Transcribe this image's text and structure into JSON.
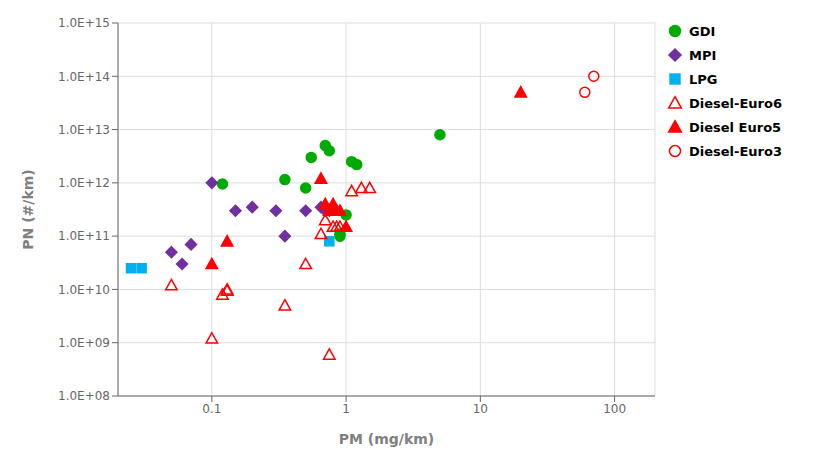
{
  "chart_data": {
    "type": "scatter",
    "xlabel": "PM (mg/km)",
    "ylabel": "PN (#/km)",
    "xlim": [
      0.02,
      200
    ],
    "ylim": [
      100000000,
      1000000000000000
    ],
    "xticks": [
      0.1,
      1,
      10,
      100
    ],
    "yticks": [
      {
        "value": 100000000,
        "label": "1.0E+08"
      },
      {
        "value": 1000000000,
        "label": "1.0E+09"
      },
      {
        "value": 10000000000,
        "label": "1.0E+10"
      },
      {
        "value": 100000000000,
        "label": "1.0E+11"
      },
      {
        "value": 1000000000000,
        "label": "1.0E+12"
      },
      {
        "value": 10000000000000,
        "label": "1.0E+13"
      },
      {
        "value": 100000000000000,
        "label": "1.0E+14"
      },
      {
        "value": 1000000000000000,
        "label": "1.0E+15"
      }
    ],
    "log": true,
    "grid": true,
    "legend": "right",
    "series": [
      {
        "name": "GDI",
        "color": "#00AA00",
        "marker": "circle",
        "x": [
          0.12,
          0.35,
          0.5,
          0.55,
          0.7,
          0.75,
          0.9,
          1.0,
          1.1,
          1.2,
          5.0,
          0.9
        ],
        "y": [
          950000000000,
          1150000000000,
          800000000000,
          3000000000000,
          5000000000000,
          4000000000000,
          110000000000,
          250000000000,
          2500000000000,
          2200000000000,
          8000000000000,
          100000000000
        ]
      },
      {
        "name": "MPI",
        "color": "#7030A0",
        "marker": "diamond",
        "x": [
          0.05,
          0.06,
          0.07,
          0.1,
          0.15,
          0.2,
          0.3,
          0.35,
          0.5,
          0.65,
          0.7,
          0.75
        ],
        "y": [
          50000000000,
          30000000000,
          70000000000,
          1000000000000,
          300000000000,
          350000000000,
          300000000000,
          100000000000,
          300000000000,
          350000000000,
          300000000000,
          300000000000
        ]
      },
      {
        "name": "LPG",
        "color": "#00B0F0",
        "marker": "square",
        "x": [
          0.025,
          0.03,
          0.75
        ],
        "y": [
          25000000000,
          25000000000,
          80000000000
        ]
      },
      {
        "name": "Diesel-Euro6",
        "color": "#FF0000",
        "marker": "triangle-open",
        "x": [
          0.05,
          0.1,
          0.12,
          0.13,
          0.35,
          0.5,
          0.65,
          0.7,
          0.75,
          0.8,
          0.85,
          0.9,
          1.1,
          1.3,
          1.5,
          0.75,
          0.13
        ],
        "y": [
          12000000000,
          1200000000,
          8000000000,
          10000000000,
          5000000000,
          30000000000,
          110000000000,
          200000000000,
          300000000000,
          150000000000,
          150000000000,
          150000000000,
          700000000000,
          800000000000,
          800000000000,
          600000000,
          9500000000
        ]
      },
      {
        "name": "Diesel Euro5",
        "color": "#FF0000",
        "marker": "triangle",
        "x": [
          0.1,
          0.13,
          0.65,
          0.7,
          0.75,
          0.8,
          0.85,
          0.9,
          1.0,
          20.0
        ],
        "y": [
          30000000000,
          80000000000,
          1200000000000,
          400000000000,
          300000000000,
          400000000000,
          300000000000,
          300000000000,
          150000000000,
          50000000000000
        ]
      },
      {
        "name": "Diesel-Euro3",
        "color": "#FF0000",
        "marker": "circle-open",
        "x": [
          60.0,
          70.0
        ],
        "y": [
          50000000000000,
          100000000000000
        ]
      }
    ]
  }
}
